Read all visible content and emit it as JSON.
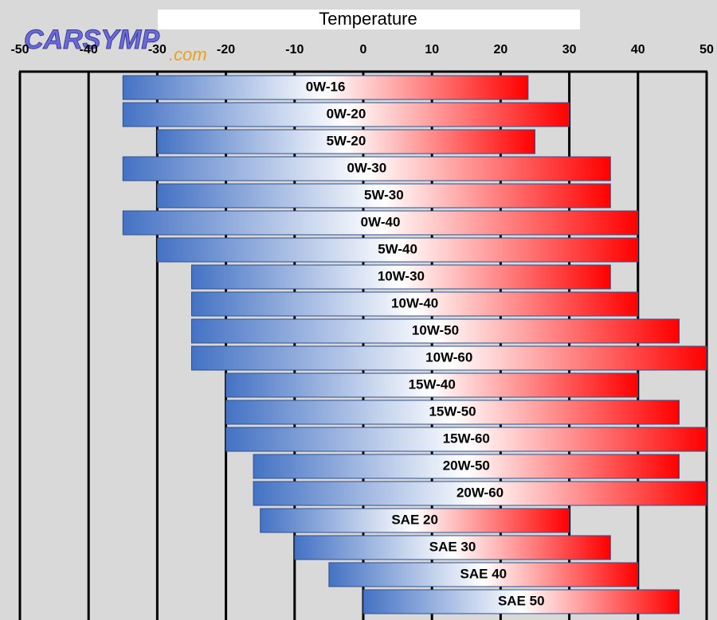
{
  "chart_data": {
    "type": "floating-bar",
    "title": "Temperature",
    "logo": "CARSYMP",
    "logo_suffix": ".com",
    "categories": [
      "0W-16",
      "0W-20",
      "5W-20",
      "0W-30",
      "5W-30",
      "0W-40",
      "5W-40",
      "10W-30",
      "10W-40",
      "10W-50",
      "10W-60",
      "15W-40",
      "15W-50",
      "15W-60",
      "20W-50",
      "20W-60",
      "SAE 20",
      "SAE 30",
      "SAE 40",
      "SAE 50"
    ],
    "values": [
      [
        -35,
        24
      ],
      [
        -35,
        30
      ],
      [
        -30,
        25
      ],
      [
        -35,
        36
      ],
      [
        -30,
        36
      ],
      [
        -35,
        40
      ],
      [
        -30,
        40
      ],
      [
        -25,
        36
      ],
      [
        -25,
        40
      ],
      [
        -25,
        46
      ],
      [
        -25,
        50
      ],
      [
        -20,
        40
      ],
      [
        -20,
        46
      ],
      [
        -20,
        50
      ],
      [
        -16,
        46
      ],
      [
        -16,
        50
      ],
      [
        -15,
        30
      ],
      [
        -10,
        36
      ],
      [
        -5,
        40
      ],
      [
        0,
        46
      ]
    ],
    "xlim": [
      -50,
      50
    ],
    "xticks": [
      -50,
      -40,
      -30,
      -20,
      -10,
      0,
      10,
      20,
      30,
      40,
      50
    ],
    "color_low": "#4472c4",
    "color_mid": "#ffffff",
    "color_high": "#ff0000",
    "grid": true
  }
}
